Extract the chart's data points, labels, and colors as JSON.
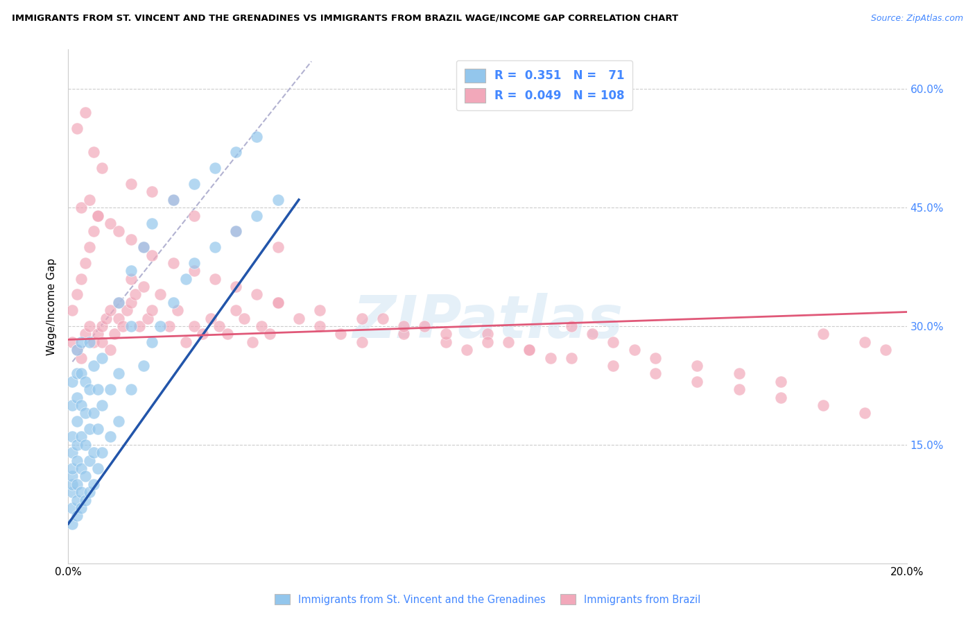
{
  "title": "IMMIGRANTS FROM ST. VINCENT AND THE GRENADINES VS IMMIGRANTS FROM BRAZIL WAGE/INCOME GAP CORRELATION CHART",
  "source": "Source: ZipAtlas.com",
  "ylabel": "Wage/Income Gap",
  "right_ytick_vals": [
    0.15,
    0.3,
    0.45,
    0.6
  ],
  "right_yticklabels": [
    "15.0%",
    "30.0%",
    "45.0%",
    "60.0%"
  ],
  "xlim": [
    0.0,
    0.2
  ],
  "ylim": [
    0.0,
    0.65
  ],
  "legend_blue_R": "0.351",
  "legend_blue_N": "71",
  "legend_pink_R": "0.049",
  "legend_pink_N": "108",
  "blue_color": "#93C6EC",
  "pink_color": "#F2A8BA",
  "blue_line_color": "#2255AA",
  "pink_line_color": "#E05878",
  "dashed_line_color": "#AAAACC",
  "watermark": "ZIPatlas",
  "label_blue": "Immigrants from St. Vincent and the Grenadines",
  "label_pink": "Immigrants from Brazil",
  "blue_x": [
    0.001,
    0.001,
    0.001,
    0.001,
    0.001,
    0.001,
    0.001,
    0.001,
    0.001,
    0.001,
    0.002,
    0.002,
    0.002,
    0.002,
    0.002,
    0.002,
    0.002,
    0.002,
    0.002,
    0.003,
    0.003,
    0.003,
    0.003,
    0.003,
    0.003,
    0.003,
    0.004,
    0.004,
    0.004,
    0.004,
    0.004,
    0.005,
    0.005,
    0.005,
    0.005,
    0.005,
    0.006,
    0.006,
    0.006,
    0.006,
    0.007,
    0.007,
    0.007,
    0.008,
    0.008,
    0.008,
    0.01,
    0.01,
    0.012,
    0.012,
    0.015,
    0.015,
    0.018,
    0.02,
    0.022,
    0.025,
    0.028,
    0.03,
    0.035,
    0.04,
    0.045,
    0.05,
    0.012,
    0.015,
    0.018,
    0.02,
    0.025,
    0.03,
    0.035,
    0.04,
    0.045
  ],
  "blue_y": [
    0.05,
    0.07,
    0.09,
    0.1,
    0.11,
    0.12,
    0.14,
    0.16,
    0.2,
    0.23,
    0.06,
    0.08,
    0.1,
    0.13,
    0.15,
    0.18,
    0.21,
    0.24,
    0.27,
    0.07,
    0.09,
    0.12,
    0.16,
    0.2,
    0.24,
    0.28,
    0.08,
    0.11,
    0.15,
    0.19,
    0.23,
    0.09,
    0.13,
    0.17,
    0.22,
    0.28,
    0.1,
    0.14,
    0.19,
    0.25,
    0.12,
    0.17,
    0.22,
    0.14,
    0.2,
    0.26,
    0.16,
    0.22,
    0.18,
    0.24,
    0.22,
    0.3,
    0.25,
    0.28,
    0.3,
    0.33,
    0.36,
    0.38,
    0.4,
    0.42,
    0.44,
    0.46,
    0.33,
    0.37,
    0.4,
    0.43,
    0.46,
    0.48,
    0.5,
    0.52,
    0.54
  ],
  "pink_x": [
    0.001,
    0.001,
    0.002,
    0.002,
    0.003,
    0.003,
    0.004,
    0.004,
    0.005,
    0.005,
    0.006,
    0.006,
    0.007,
    0.007,
    0.008,
    0.008,
    0.009,
    0.01,
    0.01,
    0.011,
    0.012,
    0.012,
    0.013,
    0.014,
    0.015,
    0.015,
    0.016,
    0.017,
    0.018,
    0.019,
    0.02,
    0.022,
    0.024,
    0.026,
    0.028,
    0.03,
    0.032,
    0.034,
    0.036,
    0.038,
    0.04,
    0.042,
    0.044,
    0.046,
    0.048,
    0.05,
    0.055,
    0.06,
    0.065,
    0.07,
    0.075,
    0.08,
    0.085,
    0.09,
    0.095,
    0.1,
    0.105,
    0.11,
    0.115,
    0.12,
    0.125,
    0.13,
    0.135,
    0.14,
    0.15,
    0.16,
    0.17,
    0.18,
    0.19,
    0.195,
    0.003,
    0.005,
    0.007,
    0.01,
    0.012,
    0.015,
    0.018,
    0.02,
    0.025,
    0.03,
    0.035,
    0.04,
    0.045,
    0.05,
    0.06,
    0.07,
    0.08,
    0.09,
    0.1,
    0.11,
    0.12,
    0.13,
    0.14,
    0.15,
    0.16,
    0.17,
    0.18,
    0.19,
    0.002,
    0.004,
    0.006,
    0.008,
    0.015,
    0.02,
    0.025,
    0.03,
    0.04,
    0.05
  ],
  "pink_y": [
    0.28,
    0.32,
    0.27,
    0.34,
    0.26,
    0.36,
    0.29,
    0.38,
    0.3,
    0.4,
    0.28,
    0.42,
    0.29,
    0.44,
    0.3,
    0.28,
    0.31,
    0.27,
    0.32,
    0.29,
    0.31,
    0.33,
    0.3,
    0.32,
    0.33,
    0.36,
    0.34,
    0.3,
    0.35,
    0.31,
    0.32,
    0.34,
    0.3,
    0.32,
    0.28,
    0.3,
    0.29,
    0.31,
    0.3,
    0.29,
    0.32,
    0.31,
    0.28,
    0.3,
    0.29,
    0.33,
    0.31,
    0.3,
    0.29,
    0.28,
    0.31,
    0.29,
    0.3,
    0.28,
    0.27,
    0.29,
    0.28,
    0.27,
    0.26,
    0.3,
    0.29,
    0.28,
    0.27,
    0.26,
    0.25,
    0.24,
    0.23,
    0.29,
    0.28,
    0.27,
    0.45,
    0.46,
    0.44,
    0.43,
    0.42,
    0.41,
    0.4,
    0.39,
    0.38,
    0.37,
    0.36,
    0.35,
    0.34,
    0.33,
    0.32,
    0.31,
    0.3,
    0.29,
    0.28,
    0.27,
    0.26,
    0.25,
    0.24,
    0.23,
    0.22,
    0.21,
    0.2,
    0.19,
    0.55,
    0.57,
    0.52,
    0.5,
    0.48,
    0.47,
    0.46,
    0.44,
    0.42,
    0.4
  ]
}
